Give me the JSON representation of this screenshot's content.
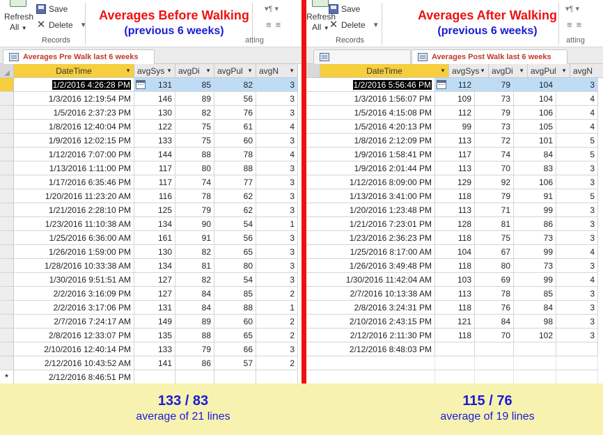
{
  "left": {
    "ribbon": {
      "refresh_label": "Refresh",
      "all_label": "All",
      "save_label": "Save",
      "delete_label": "Delete",
      "records_group": "Records"
    },
    "overlay_title": "Averages Before Walking",
    "overlay_subtitle": "(previous 6 weeks)",
    "tab_label": "Averages Pre Walk last 6 weeks",
    "columns": [
      "DateTime",
      "avgSys",
      "avgDi",
      "avgPul",
      "avgN"
    ],
    "rows": [
      [
        "1/2/2016 4:26:28 PM",
        "131",
        "85",
        "82",
        "3"
      ],
      [
        "1/3/2016 12:19:54 PM",
        "146",
        "89",
        "56",
        "3"
      ],
      [
        "1/5/2016 2:37:23 PM",
        "130",
        "82",
        "76",
        "3"
      ],
      [
        "1/8/2016 12:40:04 PM",
        "122",
        "75",
        "61",
        "4"
      ],
      [
        "1/9/2016 12:02:15 PM",
        "133",
        "75",
        "60",
        "3"
      ],
      [
        "1/12/2016 7:07:00 PM",
        "144",
        "88",
        "78",
        "4"
      ],
      [
        "1/13/2016 1:11:00 PM",
        "117",
        "80",
        "88",
        "3"
      ],
      [
        "1/17/2016 6:35:46 PM",
        "117",
        "74",
        "77",
        "3"
      ],
      [
        "1/20/2016 11:23:20 AM",
        "116",
        "78",
        "62",
        "3"
      ],
      [
        "1/21/2016 2:28:10 PM",
        "125",
        "79",
        "62",
        "3"
      ],
      [
        "1/23/2016 11:10:38 AM",
        "134",
        "90",
        "54",
        "1"
      ],
      [
        "1/25/2016 6:36:00 AM",
        "161",
        "91",
        "56",
        "3"
      ],
      [
        "1/26/2016 1:59:00 PM",
        "130",
        "82",
        "65",
        "3"
      ],
      [
        "1/28/2016 10:33:38 AM",
        "134",
        "81",
        "80",
        "3"
      ],
      [
        "1/30/2016 9:51:51 AM",
        "127",
        "82",
        "54",
        "3"
      ],
      [
        "2/2/2016 3:16:09 PM",
        "127",
        "84",
        "85",
        "2"
      ],
      [
        "2/2/2016 3:17:06 PM",
        "131",
        "84",
        "88",
        "1"
      ],
      [
        "2/7/2016 7:24:17 AM",
        "149",
        "89",
        "60",
        "2"
      ],
      [
        "2/8/2016 12:33:07 PM",
        "135",
        "88",
        "65",
        "2"
      ],
      [
        "2/10/2016 12:40:14 PM",
        "133",
        "79",
        "66",
        "3"
      ],
      [
        "2/12/2016 10:43:52 AM",
        "141",
        "86",
        "57",
        "2"
      ]
    ],
    "new_row": "2/12/2016 8:46:51 PM",
    "new_row_marker": "*"
  },
  "right": {
    "ribbon": {
      "refresh_label": "Refresh",
      "all_label": "All",
      "save_label": "Save",
      "delete_label": "Delete",
      "records_group": "Records"
    },
    "overlay_title": "Averages After Walking",
    "overlay_subtitle": "(previous 6 weeks)",
    "tab_label": "Averages Post Walk last 6 weeks",
    "columns": [
      "DateTime",
      "avgSys",
      "avgDi",
      "avgPul",
      "avgN"
    ],
    "rows": [
      [
        "1/2/2016 5:56:46 PM",
        "112",
        "79",
        "104",
        "3"
      ],
      [
        "1/3/2016 1:56:07 PM",
        "109",
        "73",
        "104",
        "4"
      ],
      [
        "1/5/2016 4:15:08 PM",
        "112",
        "79",
        "106",
        "4"
      ],
      [
        "1/5/2016 4:20:13 PM",
        "99",
        "73",
        "105",
        "4"
      ],
      [
        "1/8/2016 2:12:09 PM",
        "113",
        "72",
        "101",
        "5"
      ],
      [
        "1/9/2016 1:58:41 PM",
        "117",
        "74",
        "84",
        "5"
      ],
      [
        "1/9/2016 2:01:44 PM",
        "113",
        "70",
        "83",
        "3"
      ],
      [
        "1/12/2016 8:09:00 PM",
        "129",
        "92",
        "106",
        "3"
      ],
      [
        "1/13/2016 3:41:00 PM",
        "118",
        "79",
        "91",
        "5"
      ],
      [
        "1/20/2016 1:23:48 PM",
        "113",
        "71",
        "99",
        "3"
      ],
      [
        "1/21/2016 7:23:01 PM",
        "128",
        "81",
        "86",
        "3"
      ],
      [
        "1/23/2016 2:36:23 PM",
        "118",
        "75",
        "73",
        "3"
      ],
      [
        "1/25/2016 8:17:00 AM",
        "104",
        "67",
        "99",
        "4"
      ],
      [
        "1/26/2016 3:49:48 PM",
        "118",
        "80",
        "73",
        "3"
      ],
      [
        "1/30/2016 11:42:04 AM",
        "103",
        "69",
        "99",
        "4"
      ],
      [
        "2/7/2016 10:13:38 AM",
        "113",
        "78",
        "85",
        "3"
      ],
      [
        "2/8/2016 3:24:31 PM",
        "118",
        "76",
        "84",
        "3"
      ],
      [
        "2/10/2016 2:43:15 PM",
        "121",
        "84",
        "98",
        "3"
      ],
      [
        "2/12/2016 2:11:30 PM",
        "118",
        "70",
        "102",
        "3"
      ]
    ],
    "new_row": "2/12/2016 8:48:03 PM",
    "new_row_marker": "*"
  },
  "summary": {
    "left_main": "133 / 83",
    "left_sub": "average of 21 lines",
    "right_main": "115 / 76",
    "right_sub": "average of 19 lines"
  },
  "colors": {
    "divider": "#ee1111",
    "title_red": "#ee1111",
    "subtitle_blue": "#1a1ad6",
    "header_gold": "#f7ce3e",
    "selected_row": "#bfdcf6",
    "summary_bg": "#f7f2b0"
  }
}
